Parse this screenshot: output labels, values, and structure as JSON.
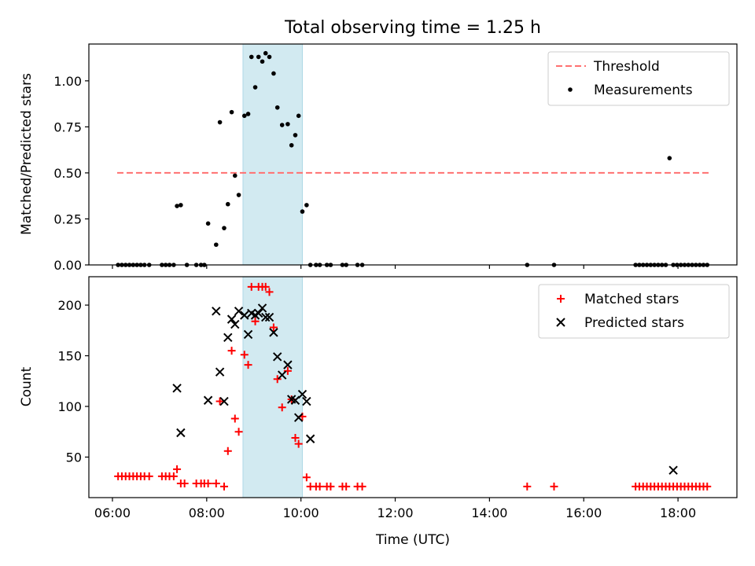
{
  "chart_data": {
    "title": "Total observing time = 1.25 h",
    "highlight_band": {
      "start_hour": 8.77,
      "end_hour": 10.03,
      "color": "#add8e6"
    },
    "x_axis": {
      "label": "Time (UTC)",
      "range_hours": [
        5.5,
        19.25
      ],
      "ticks": [
        {
          "hour": 6,
          "label": "06:00"
        },
        {
          "hour": 8,
          "label": "08:00"
        },
        {
          "hour": 10,
          "label": "10:00"
        },
        {
          "hour": 12,
          "label": "12:00"
        },
        {
          "hour": 14,
          "label": "14:00"
        },
        {
          "hour": 16,
          "label": "16:00"
        },
        {
          "hour": 18,
          "label": "18:00"
        }
      ]
    },
    "panels": [
      {
        "type": "scatter",
        "ylabel": "Matched/Predicted stars",
        "ylim": [
          0,
          1.2
        ],
        "yticks": [
          {
            "value": 0.0,
            "label": "0.00"
          },
          {
            "value": 0.25,
            "label": "0.25"
          },
          {
            "value": 0.5,
            "label": "0.50"
          },
          {
            "value": 0.75,
            "label": "0.75"
          },
          {
            "value": 1.0,
            "label": "1.00"
          }
        ],
        "threshold": {
          "name": "Threshold",
          "value": 0.5,
          "x_start": 6.1,
          "x_end": 18.65,
          "color": "#ff7070"
        },
        "legend": [
          "Threshold",
          "Measurements"
        ],
        "series": [
          {
            "name": "Measurements",
            "color": "#000000",
            "marker": "dot",
            "x": [
              6.12,
              6.2,
              6.28,
              6.36,
              6.44,
              6.52,
              6.6,
              6.68,
              6.78,
              7.05,
              7.13,
              7.21,
              7.3,
              7.37,
              7.45,
              7.58,
              7.78,
              7.88,
              7.95,
              8.03,
              8.2,
              8.28,
              8.37,
              8.45,
              8.53,
              8.6,
              8.68,
              8.8,
              8.88,
              8.95,
              9.03,
              9.1,
              9.18,
              9.25,
              9.33,
              9.42,
              9.5,
              9.6,
              9.72,
              9.8,
              9.88,
              9.95,
              10.03,
              10.12,
              10.2,
              10.32,
              10.4,
              10.55,
              10.63,
              10.88,
              10.96,
              11.2,
              11.3,
              14.8,
              15.37,
              17.1,
              17.18,
              17.26,
              17.34,
              17.42,
              17.5,
              17.58,
              17.66,
              17.74,
              17.82,
              17.9,
              17.98,
              18.06,
              18.14,
              18.22,
              18.3,
              18.38,
              18.46,
              18.54,
              18.62
            ],
            "y": [
              0,
              0,
              0,
              0,
              0,
              0,
              0,
              0,
              0,
              0,
              0,
              0,
              0,
              0.32,
              0.325,
              0,
              0,
              0,
              0,
              0.225,
              0.11,
              0.775,
              0.2,
              0.33,
              0.83,
              0.485,
              0.38,
              0.81,
              0.82,
              1.13,
              0.965,
              1.13,
              1.105,
              1.15,
              1.13,
              1.04,
              0.855,
              0.76,
              0.765,
              0.65,
              0.705,
              0.81,
              0.29,
              0.325,
              0,
              0,
              0,
              0,
              0,
              0,
              0,
              0,
              0,
              0,
              0,
              0,
              0,
              0,
              0,
              0,
              0,
              0,
              0,
              0,
              0.58,
              0,
              0,
              0,
              0,
              0,
              0,
              0,
              0,
              0,
              0
            ]
          }
        ]
      },
      {
        "type": "scatter",
        "ylabel": "Count",
        "ylim": [
          10,
          228
        ],
        "yticks": [
          {
            "value": 50,
            "label": "50"
          },
          {
            "value": 100,
            "label": "100"
          },
          {
            "value": 150,
            "label": "150"
          },
          {
            "value": 200,
            "label": "200"
          }
        ],
        "legend": [
          "Matched stars",
          "Predicted stars"
        ],
        "series": [
          {
            "name": "Matched stars",
            "color": "#ff0000",
            "marker": "plus",
            "x": [
              6.12,
              6.2,
              6.28,
              6.36,
              6.44,
              6.52,
              6.6,
              6.68,
              6.78,
              7.05,
              7.13,
              7.21,
              7.3,
              7.37,
              7.45,
              7.53,
              7.78,
              7.88,
              7.95,
              8.03,
              8.2,
              8.28,
              8.37,
              8.45,
              8.53,
              8.6,
              8.68,
              8.8,
              8.88,
              8.95,
              9.03,
              9.1,
              9.18,
              9.25,
              9.33,
              9.42,
              9.5,
              9.6,
              9.72,
              9.8,
              9.88,
              9.95,
              10.03,
              10.12,
              10.2,
              10.32,
              10.4,
              10.55,
              10.63,
              10.88,
              10.96,
              11.2,
              11.3,
              14.8,
              15.37,
              17.1,
              17.18,
              17.26,
              17.34,
              17.42,
              17.5,
              17.58,
              17.66,
              17.74,
              17.82,
              17.9,
              17.98,
              18.06,
              18.14,
              18.22,
              18.3,
              18.38,
              18.46,
              18.54,
              18.62
            ],
            "y": [
              31,
              31,
              31,
              31,
              31,
              31,
              31,
              31,
              31,
              31,
              31,
              31,
              31,
              38,
              24,
              24,
              24,
              24,
              24,
              24,
              24,
              105,
              21,
              56,
              155,
              88,
              75,
              151,
              141,
              218,
              184,
              218,
              218,
              218,
              213,
              178,
              127,
              99,
              135,
              107,
              69,
              63,
              90,
              30,
              21,
              21,
              21,
              21,
              21,
              21,
              21,
              21,
              21,
              21,
              21,
              21,
              21,
              21,
              21,
              21,
              21,
              21,
              21,
              21,
              21,
              21,
              21,
              21,
              21,
              21,
              21,
              21,
              21,
              21,
              21
            ]
          },
          {
            "name": "Predicted stars",
            "color": "#000000",
            "marker": "x",
            "x": [
              7.37,
              7.45,
              8.03,
              8.2,
              8.28,
              8.37,
              8.45,
              8.53,
              8.6,
              8.68,
              8.8,
              8.88,
              8.95,
              9.03,
              9.1,
              9.18,
              9.25,
              9.33,
              9.42,
              9.5,
              9.6,
              9.72,
              9.8,
              9.88,
              9.95,
              10.03,
              10.12,
              10.2,
              17.9
            ],
            "y": [
              118,
              74,
              106,
              194,
              134,
              105,
              168,
              186,
              181,
              194,
              190,
              171,
              192,
              190,
              192,
              197,
              188,
              188,
              173,
              149,
              131,
              141,
              107,
              106,
              89,
              112,
              105,
              68,
              37
            ]
          }
        ]
      }
    ]
  }
}
